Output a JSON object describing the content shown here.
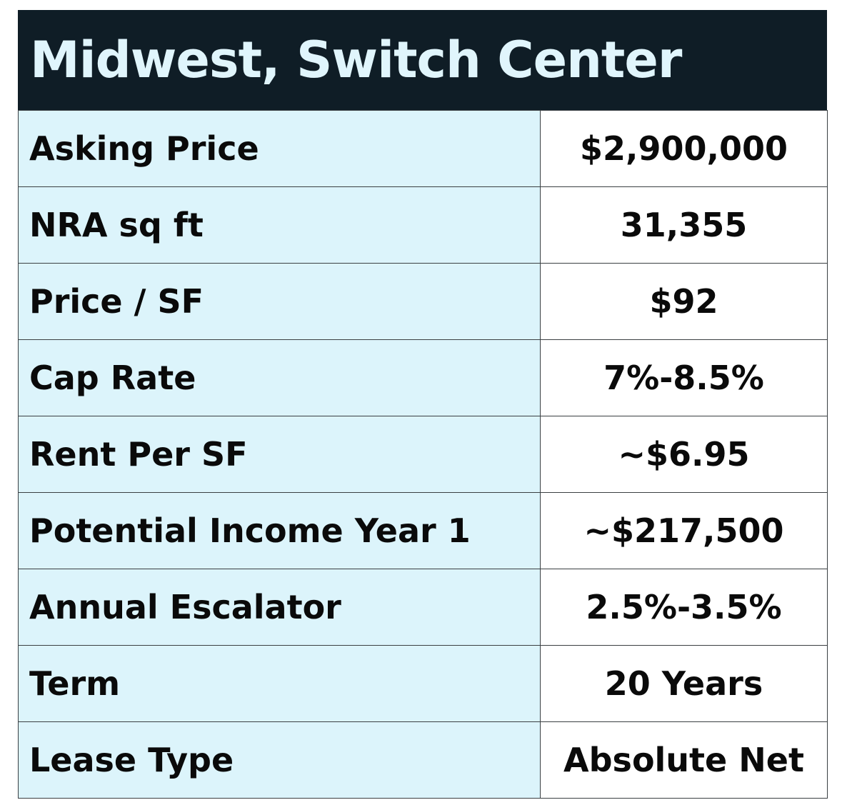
{
  "title": "Midwest, Switch Center",
  "rows": [
    {
      "label": "Asking Price",
      "value": "$2,900,000"
    },
    {
      "label": "NRA sq ft",
      "value": "31,355"
    },
    {
      "label": "Price / SF",
      "value": "$92"
    },
    {
      "label": "Cap Rate",
      "value": "7%-8.5%"
    },
    {
      "label": "Rent Per SF",
      "value": "~$6.95"
    },
    {
      "label": "Potential Income Year 1",
      "value": "~$217,500"
    },
    {
      "label": "Annual Escalator",
      "value": "2.5%-3.5%"
    },
    {
      "label": "Term",
      "value": "20 Years"
    },
    {
      "label": "Lease Type",
      "value": "Absolute Net"
    }
  ],
  "colors": {
    "header_background": "#0f1d26",
    "header_text": "#e0f5fc",
    "label_cell_background": "#dcf4fb",
    "value_cell_background": "#ffffff",
    "text": "#0a0a0a",
    "border": "#3a3f42"
  }
}
